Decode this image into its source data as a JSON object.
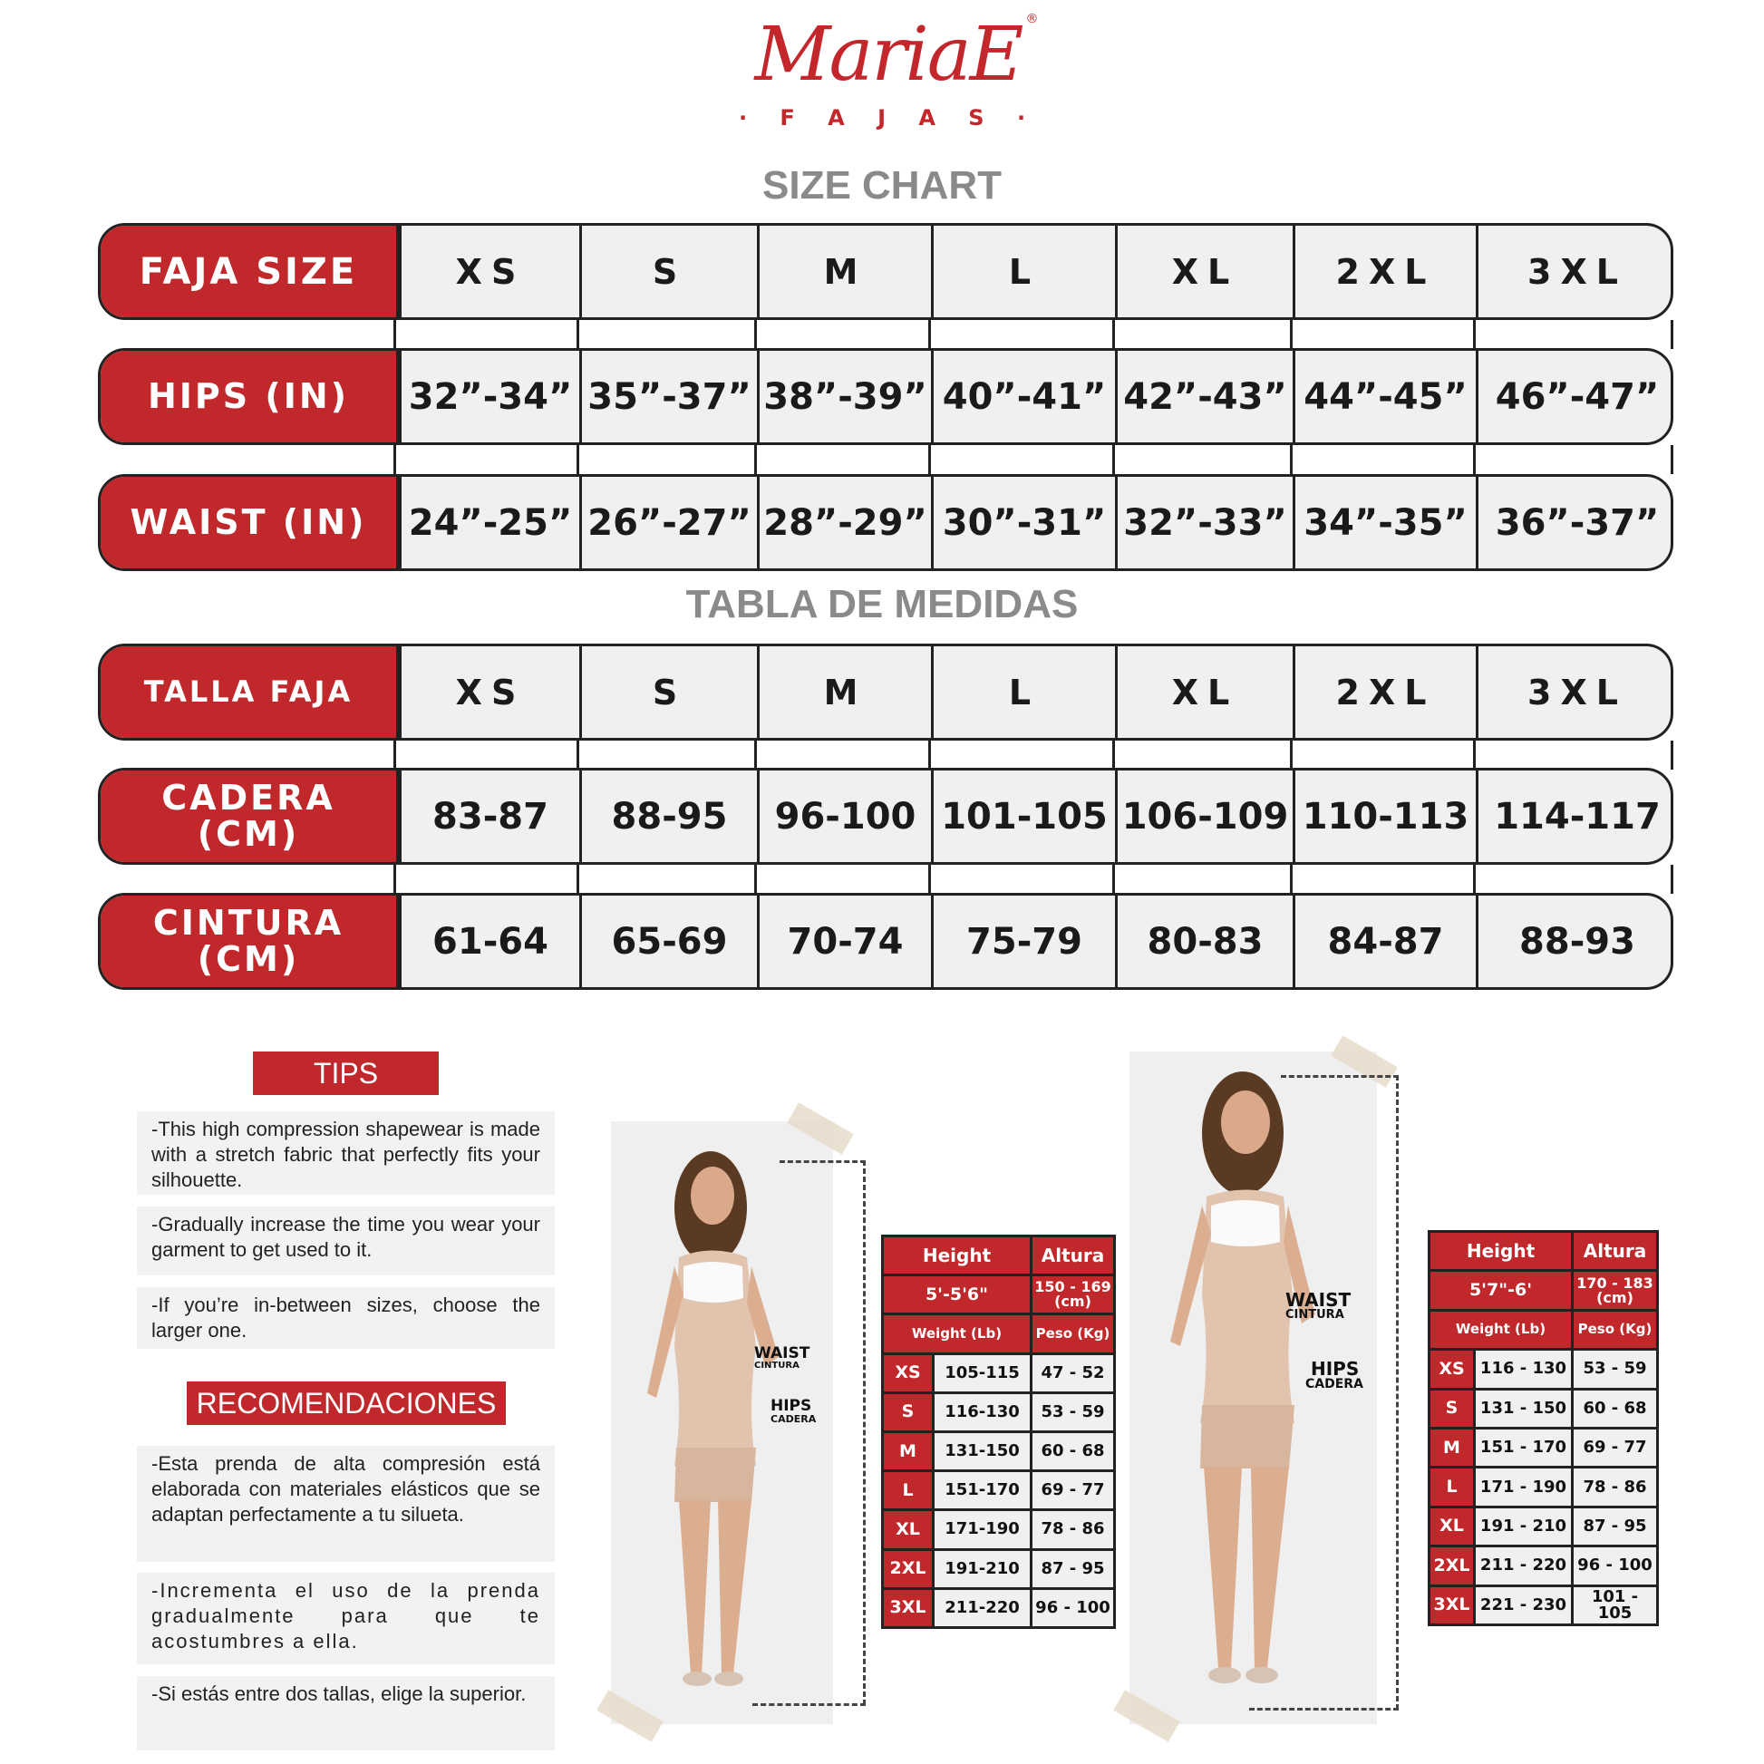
{
  "brand": {
    "name": "MariaE",
    "sub": "· F A J A S ·",
    "reg": "®",
    "color": "#c3272b"
  },
  "size_chart": {
    "title": "SIZE CHART",
    "rows": [
      {
        "label": "FAJA SIZE",
        "values": [
          "XS",
          "S",
          "M",
          "L",
          "XL",
          "2XL",
          "3XL"
        ]
      },
      {
        "label": "HIPS (IN)",
        "values": [
          "32”-34”",
          "35”-37”",
          "38”-39”",
          "40”-41”",
          "42”-43”",
          "44”-45”",
          "46”-47”"
        ]
      },
      {
        "label": "WAIST (IN)",
        "values": [
          "24”-25”",
          "26”-27”",
          "28”-29”",
          "30”-31”",
          "32”-33”",
          "34”-35”",
          "36”-37”"
        ]
      }
    ]
  },
  "tabla_medidas": {
    "title": "TABLA DE MEDIDAS",
    "rows": [
      {
        "label": "TALLA FAJA",
        "values": [
          "XS",
          "S",
          "M",
          "L",
          "XL",
          "2XL",
          "3XL"
        ]
      },
      {
        "label": "CADERA (CM)",
        "values": [
          "83-87",
          "88-95",
          "96-100",
          "101-105",
          "106-109",
          "110-113",
          "114-117"
        ]
      },
      {
        "label": "CINTURA (CM)",
        "values": [
          "61-64",
          "65-69",
          "70-74",
          "75-79",
          "80-83",
          "84-87",
          "88-93"
        ]
      }
    ]
  },
  "tips": {
    "title": "TIPS",
    "items": [
      "-This high compression shapewear is made with a stretch fabric that perfectly fits your silhouette.",
      "-Gradually increase the time you wear your garment to get used to it.",
      "-If you’re in-between sizes, choose the larger one."
    ]
  },
  "recomendaciones": {
    "title": "RECOMENDACIONES",
    "items": [
      "-Esta prenda de alta compresión está elaborada con materiales elásticos que se adaptan perfectamente a tu silueta.",
      "-Incrementa el uso de la prenda gradualmente para que te acostumbres a ella.",
      "-Si estás entre dos tallas, elige la superior."
    ]
  },
  "models": [
    {
      "waist": "WAIST",
      "waist_es": "CINTURA",
      "hips": "HIPS",
      "hips_es": "CADERA"
    },
    {
      "waist": "WAIST",
      "waist_es": "CINTURA",
      "hips": "HIPS",
      "hips_es": "CADERA"
    }
  ],
  "weight_tables": [
    {
      "height_label": "Height",
      "altura_label": "Altura",
      "height_value": "5'-5'6\"",
      "altura_value": "150 - 169 (cm)",
      "weight_label": "Weight (Lb)",
      "peso_label": "Peso (Kg)",
      "rows": [
        [
          "XS",
          "105-115",
          "47 - 52"
        ],
        [
          "S",
          "116-130",
          "53 - 59"
        ],
        [
          "M",
          "131-150",
          "60 - 68"
        ],
        [
          "L",
          "151-170",
          "69 - 77"
        ],
        [
          "XL",
          "171-190",
          "78 - 86"
        ],
        [
          "2XL",
          "191-210",
          "87 - 95"
        ],
        [
          "3XL",
          "211-220",
          "96 - 100"
        ]
      ]
    },
    {
      "height_label": "Height",
      "altura_label": "Altura",
      "height_value": "5'7\"-6'",
      "altura_value": "170 - 183 (cm)",
      "weight_label": "Weight (Lb)",
      "peso_label": "Peso (Kg)",
      "rows": [
        [
          "XS",
          "116 - 130",
          "53 - 59"
        ],
        [
          "S",
          "131 - 150",
          "60 - 68"
        ],
        [
          "M",
          "151 - 170",
          "69 - 77"
        ],
        [
          "L",
          "171 - 190",
          "78 - 86"
        ],
        [
          "XL",
          "191 - 210",
          "87 - 95"
        ],
        [
          "2XL",
          "211 - 220",
          "96 - 100"
        ],
        [
          "3XL",
          "221 - 230",
          "101 - 105"
        ]
      ]
    }
  ],
  "colors": {
    "red": "#c0282b",
    "cell": "#f0f0f0",
    "border": "#222222",
    "title_gray": "#8a8a8a"
  }
}
